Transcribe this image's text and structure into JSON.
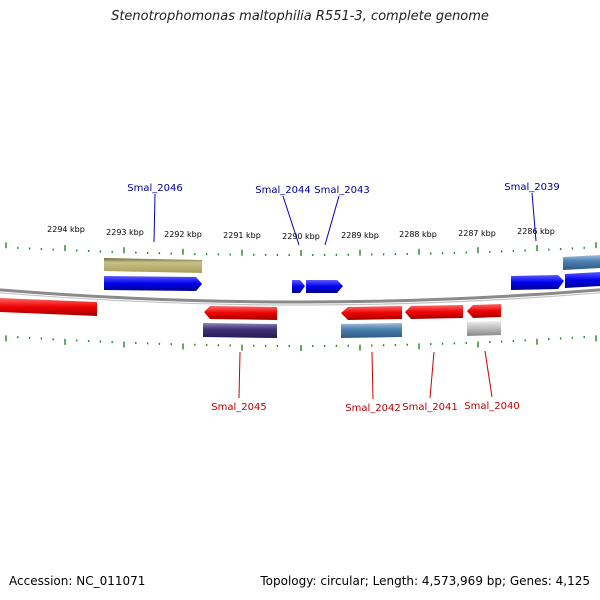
{
  "title": "Stenotrophomonas maltophilia R551-3, complete genome",
  "footer": {
    "accession": "Accession: NC_011071",
    "topology": "Topology: circular; Length: 4,573,969 bp; Genes: 4,125"
  },
  "colors": {
    "forward": "#0000ee",
    "reverse": "#ee0000",
    "tick": "#228822",
    "backbone": "#808080",
    "label_top": "#000099",
    "label_bottom": "#bb0000"
  },
  "scale": [
    {
      "pos": 2294,
      "label": "2294 kbp"
    },
    {
      "pos": 2293,
      "label": "2293 kbp"
    },
    {
      "pos": 2292,
      "label": "2292 kbp"
    },
    {
      "pos": 2291,
      "label": "2291 kbp"
    },
    {
      "pos": 2290,
      "label": "2290 kbp"
    },
    {
      "pos": 2289,
      "label": "2289 kbp"
    },
    {
      "pos": 2288,
      "label": "2288 kbp"
    },
    {
      "pos": 2287,
      "label": "2287 kbp"
    },
    {
      "pos": 2286,
      "label": "2286 kbp"
    }
  ],
  "gene_labels_top": [
    {
      "name": "Smal_2046"
    },
    {
      "name": "Smal_2044"
    },
    {
      "name": "Smal_2043"
    },
    {
      "name": "Smal_2039"
    }
  ],
  "gene_labels_bottom": [
    {
      "name": "Smal_2045"
    },
    {
      "name": "Smal_2042"
    },
    {
      "name": "Smal_2041"
    },
    {
      "name": "Smal_2040"
    }
  ]
}
